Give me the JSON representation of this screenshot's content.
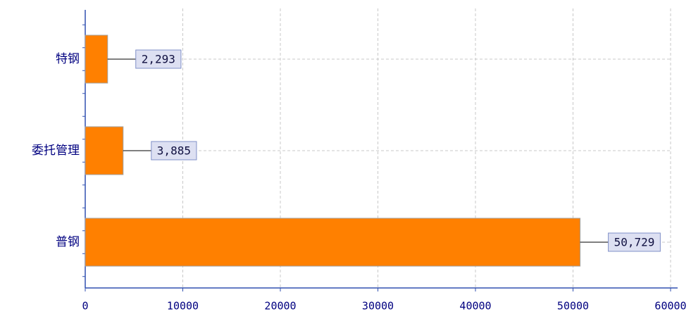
{
  "chart_data": {
    "type": "bar",
    "orientation": "horizontal",
    "categories": [
      "特钢",
      "委托管理",
      "普钢"
    ],
    "values": [
      2293,
      3885,
      50729
    ],
    "value_labels": [
      "2,293",
      "3,885",
      "50,729"
    ],
    "color": "#ff8000",
    "xlim": [
      0,
      60000
    ],
    "xticks": [
      0,
      10000,
      20000,
      30000,
      40000,
      50000,
      60000
    ],
    "grid": true
  }
}
